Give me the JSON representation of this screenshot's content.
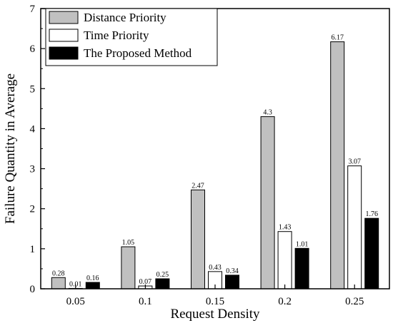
{
  "chart_data": {
    "type": "bar",
    "categories": [
      "0.05",
      "0.1",
      "0.15",
      "0.2",
      "0.25"
    ],
    "series": [
      {
        "name": "Distance Priority",
        "values": [
          0.28,
          1.05,
          2.47,
          4.3,
          6.17
        ],
        "labels": [
          "0.28",
          "1.05",
          "2.47",
          "4.3",
          "6.17"
        ],
        "color": "#c0c0c0"
      },
      {
        "name": "Time Priority",
        "values": [
          0.01,
          0.07,
          0.43,
          1.43,
          3.07
        ],
        "labels": [
          "0.01",
          "0.07",
          "0.43",
          "1.43",
          "3.07"
        ],
        "color": "#ffffff"
      },
      {
        "name": "The Proposed Method",
        "values": [
          0.16,
          0.25,
          0.34,
          1.01,
          1.76
        ],
        "labels": [
          "0.16",
          "0.25",
          "0.34",
          "1.01",
          "1.76"
        ],
        "color": "#000000"
      }
    ],
    "xlabel": "Request Density",
    "ylabel": "Failure Quantity in Average",
    "ylim": [
      0,
      7
    ],
    "yticks": [
      "0",
      "1",
      "2",
      "3",
      "4",
      "5",
      "6",
      "7"
    ],
    "grid": false,
    "legend_position": "top-left"
  }
}
